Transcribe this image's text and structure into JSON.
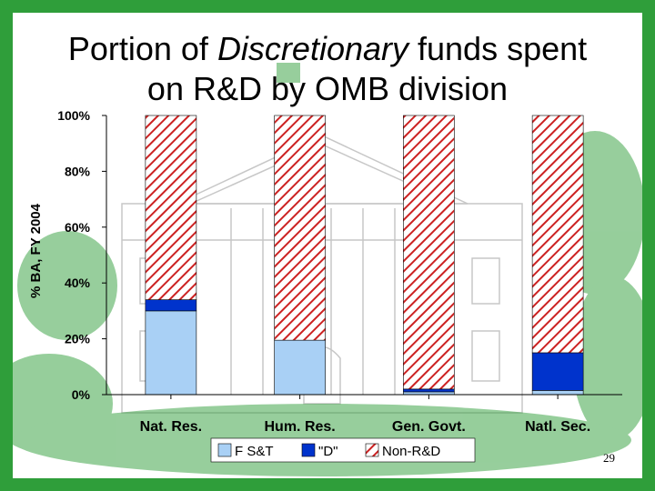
{
  "slide": {
    "title_pre": "Portion of ",
    "title_em": "Discretionary",
    "title_post": " funds spent",
    "title_line2": "on R&D by OMB division",
    "page_number": "29"
  },
  "colors": {
    "frame": "#2f9e3a",
    "fst": "#a9d0f5",
    "d": "#0033cc",
    "nonrd_stripe": "#cc2222"
  },
  "chart_data": {
    "type": "bar",
    "stacked": true,
    "title": "",
    "xlabel": "",
    "ylabel": "% BA, FY 2004",
    "ylim": [
      0,
      100
    ],
    "yticks": [
      "0%",
      "20%",
      "40%",
      "60%",
      "80%",
      "100%"
    ],
    "categories": [
      "Nat. Res.",
      "Hum. Res.",
      "Gen. Govt.",
      "Natl. Sec."
    ],
    "series": [
      {
        "name": "F S&T",
        "values": [
          30,
          19.5,
          1,
          1.5
        ]
      },
      {
        "name": "\"D\"",
        "values": [
          4,
          0,
          1,
          13.5
        ]
      },
      {
        "name": "Non-R&D",
        "values": [
          66,
          80.5,
          98,
          85
        ]
      }
    ],
    "legend_position": "bottom"
  }
}
